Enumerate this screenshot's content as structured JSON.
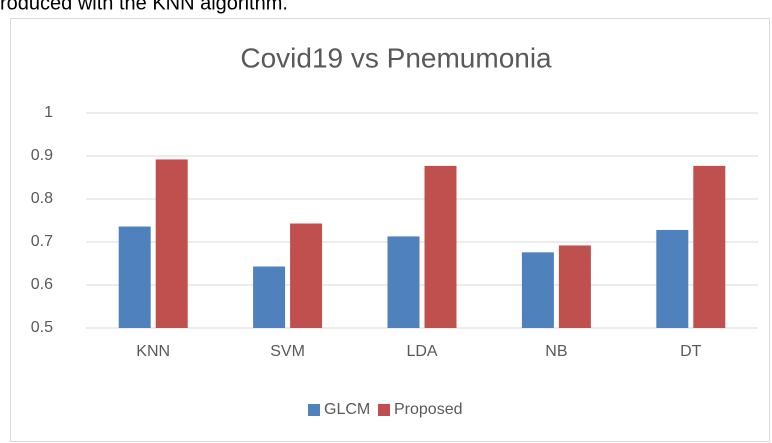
{
  "text_above": "roduced with the KNN algorithm.",
  "chart_data": {
    "type": "bar",
    "title": "Covid19 vs Pnemumonia",
    "categories": [
      "KNN",
      "SVM",
      "LDA",
      "NB",
      "DT"
    ],
    "series": [
      {
        "name": "GLCM",
        "color": "#4f81bd",
        "values": [
          0.736,
          0.643,
          0.713,
          0.676,
          0.728
        ]
      },
      {
        "name": "Proposed",
        "color": "#c0504d",
        "values": [
          0.892,
          0.743,
          0.877,
          0.692,
          0.877
        ]
      }
    ],
    "ylim": [
      0.5,
      1
    ],
    "yticks": [
      0.5,
      0.6,
      0.7,
      0.8,
      0.9,
      1
    ],
    "grid": true,
    "legend": "bottom"
  }
}
